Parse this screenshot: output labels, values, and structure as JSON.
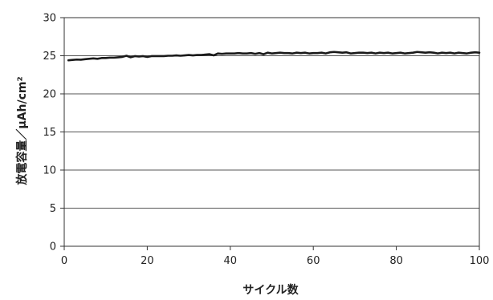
{
  "chart_data": {
    "type": "line",
    "title": "",
    "xlabel": "サイクル数",
    "ylabel": "放電容量／μAh/cm²",
    "xlim": [
      0,
      100
    ],
    "ylim": [
      0,
      30
    ],
    "xticks": [
      0,
      20,
      40,
      60,
      80,
      100
    ],
    "yticks": [
      0,
      5,
      10,
      15,
      20,
      25,
      30
    ],
    "grid": "horizontal",
    "legend": "none",
    "series": [
      {
        "color": "#1a1a1a",
        "x": [
          1,
          2,
          3,
          4,
          5,
          6,
          7,
          8,
          9,
          10,
          11,
          12,
          13,
          14,
          15,
          16,
          17,
          18,
          19,
          20,
          21,
          22,
          23,
          24,
          25,
          26,
          27,
          28,
          29,
          30,
          31,
          32,
          33,
          34,
          35,
          36,
          37,
          38,
          39,
          40,
          41,
          42,
          43,
          44,
          45,
          46,
          47,
          48,
          49,
          50,
          51,
          52,
          53,
          54,
          55,
          56,
          57,
          58,
          59,
          60,
          61,
          62,
          63,
          64,
          65,
          66,
          67,
          68,
          69,
          70,
          71,
          72,
          73,
          74,
          75,
          76,
          77,
          78,
          79,
          80,
          81,
          82,
          83,
          84,
          85,
          86,
          87,
          88,
          89,
          90,
          91,
          92,
          93,
          94,
          95,
          96,
          97,
          98,
          99,
          100
        ],
        "values": [
          24.4,
          24.45,
          24.5,
          24.48,
          24.55,
          24.6,
          24.65,
          24.6,
          24.7,
          24.7,
          24.75,
          24.75,
          24.8,
          24.85,
          25.0,
          24.8,
          24.95,
          24.9,
          24.95,
          24.85,
          24.95,
          24.95,
          24.95,
          24.95,
          25.0,
          25.0,
          25.05,
          25.0,
          25.05,
          25.1,
          25.05,
          25.1,
          25.1,
          25.15,
          25.2,
          25.05,
          25.3,
          25.25,
          25.3,
          25.3,
          25.3,
          25.35,
          25.3,
          25.3,
          25.35,
          25.25,
          25.35,
          25.2,
          25.4,
          25.3,
          25.35,
          25.4,
          25.35,
          25.35,
          25.3,
          25.4,
          25.35,
          25.4,
          25.3,
          25.35,
          25.35,
          25.4,
          25.3,
          25.45,
          25.5,
          25.45,
          25.4,
          25.45,
          25.3,
          25.35,
          25.4,
          25.4,
          25.35,
          25.4,
          25.3,
          25.4,
          25.35,
          25.4,
          25.3,
          25.35,
          25.4,
          25.3,
          25.35,
          25.4,
          25.5,
          25.45,
          25.4,
          25.45,
          25.4,
          25.3,
          25.4,
          25.35,
          25.4,
          25.3,
          25.4,
          25.35,
          25.3,
          25.4,
          25.45,
          25.4
        ]
      }
    ]
  }
}
